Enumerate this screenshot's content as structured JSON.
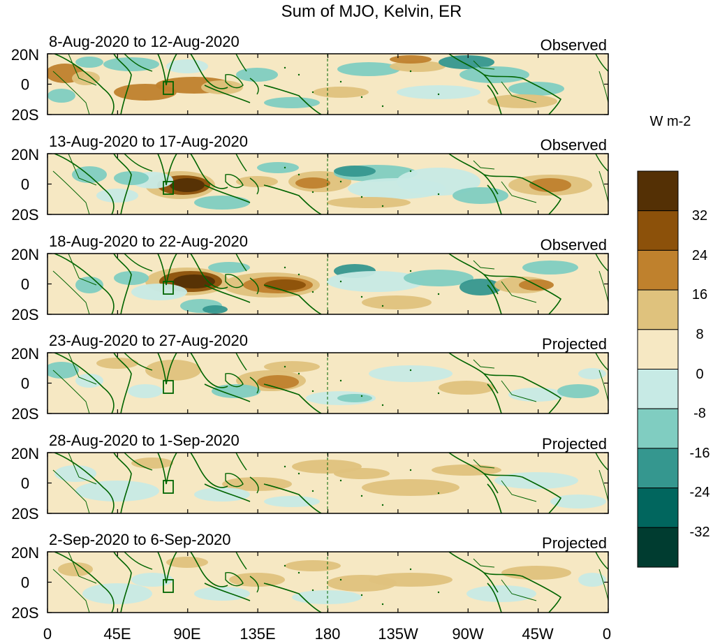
{
  "figure": {
    "title": "Sum of MJO, Kelvin, ER",
    "panels": [
      {
        "date_range": "8-Aug-2020 to 12-Aug-2020",
        "status": "Observed"
      },
      {
        "date_range": "13-Aug-2020 to 17-Aug-2020",
        "status": "Observed"
      },
      {
        "date_range": "18-Aug-2020 to 22-Aug-2020",
        "status": "Observed"
      },
      {
        "date_range": "23-Aug-2020 to 27-Aug-2020",
        "status": "Projected"
      },
      {
        "date_range": "28-Aug-2020 to 1-Sep-2020",
        "status": "Projected"
      },
      {
        "date_range": "2-Sep-2020 to 6-Sep-2020",
        "status": "Projected"
      }
    ],
    "lat_labels": [
      "20N",
      "0",
      "20S"
    ],
    "lon_labels": [
      "0",
      "45E",
      "90E",
      "135E",
      "180",
      "135W",
      "90W",
      "45W",
      "0"
    ],
    "colorbar": {
      "units": "W m-2",
      "tick_labels": [
        "32",
        "24",
        "16",
        "8",
        "0",
        "-8",
        "-16",
        "-24",
        "-32"
      ],
      "colors": [
        "#543005",
        "#8c510a",
        "#bf812d",
        "#dfc27d",
        "#f6e8c3",
        "#c7eae5",
        "#80cdc1",
        "#35978f",
        "#01665e",
        "#003c30"
      ]
    },
    "map_colors": {
      "coast": "#006400",
      "neutral": "#f6e8c3"
    }
  }
}
